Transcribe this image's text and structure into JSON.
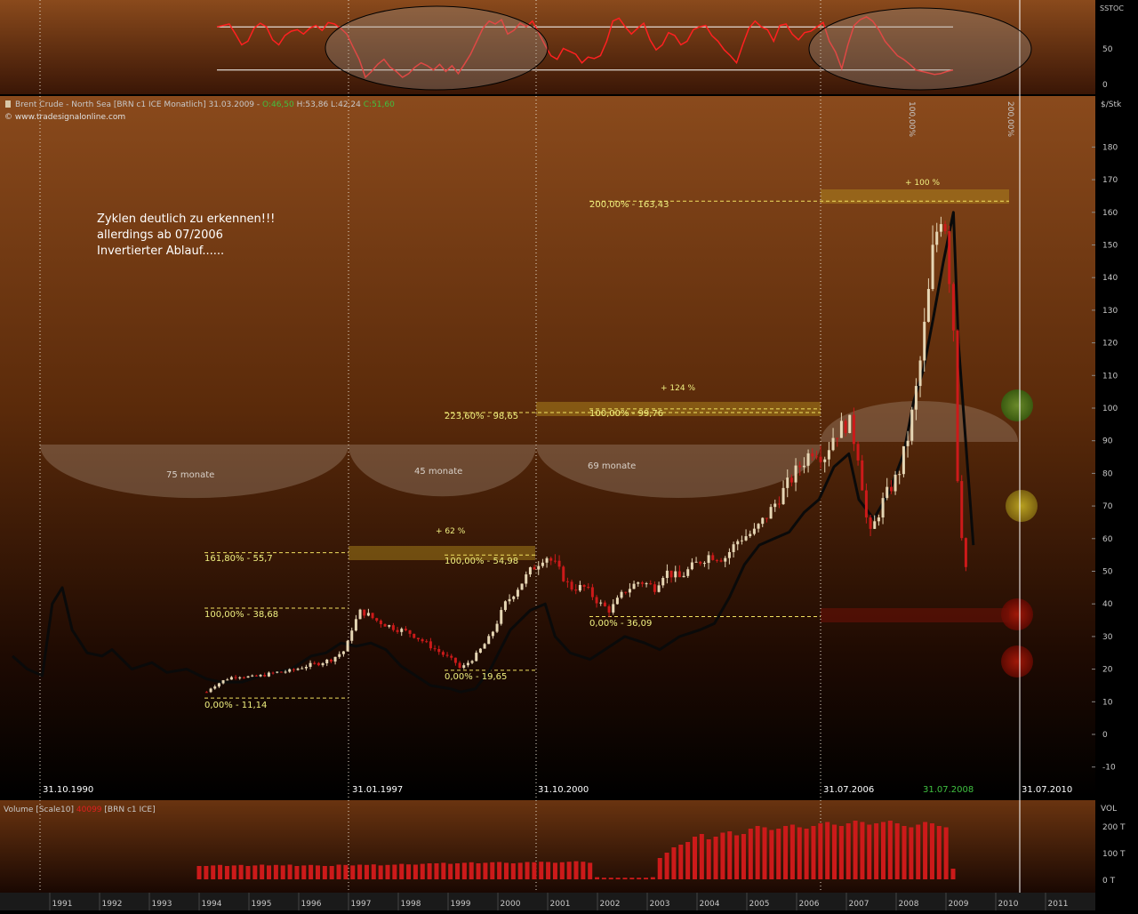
{
  "colors": {
    "background_top": "#8a4a1c",
    "background_bottom": "#000000",
    "price_up": "#e6d6b4",
    "price_down": "#cc1a1a",
    "shadow_line": "#0a0a0a",
    "fib_line": "#f0e060",
    "fib_text": "#f0f080",
    "stoch_line": "#ff2020",
    "volume": "#cc1a1a",
    "axis_text": "#c8c8c8"
  },
  "sstoc": {
    "label": "SSTOC",
    "ticks": [
      "50",
      "0"
    ],
    "levels": [
      80,
      20
    ],
    "values": [
      80,
      82,
      84,
      70,
      55,
      60,
      78,
      85,
      80,
      62,
      55,
      68,
      74,
      76,
      70,
      78,
      82,
      75,
      86,
      84,
      78,
      70,
      52,
      35,
      10,
      18,
      28,
      35,
      24,
      18,
      10,
      15,
      24,
      30,
      26,
      20,
      28,
      18,
      26,
      15,
      28,
      42,
      60,
      78,
      88,
      84,
      90,
      70,
      75,
      85,
      80,
      88,
      72,
      55,
      40,
      35,
      50,
      46,
      42,
      30,
      38,
      36,
      40,
      60,
      88,
      92,
      80,
      70,
      78,
      85,
      62,
      48,
      55,
      72,
      68,
      55,
      60,
      76,
      80,
      82,
      68,
      60,
      48,
      40,
      30,
      55,
      78,
      88,
      80,
      76,
      60,
      82,
      84,
      70,
      62,
      72,
      74,
      80,
      86,
      60,
      45,
      22,
      55,
      82,
      90,
      94,
      88,
      76,
      60,
      50,
      40,
      35,
      28,
      20,
      18,
      16,
      14,
      15,
      18,
      20
    ]
  },
  "main": {
    "title": {
      "instrument": "Brent Crude - North Sea [BRN c1 ICE Monatlich]",
      "date": "31.03.2009 -",
      "open": "O:46,50",
      "hl": "H:53,86 L:42,24",
      "close": "C:51,60"
    },
    "copyright": "© www.tradesignalonline.com",
    "unit": "$/Stk",
    "annotation": [
      "Zyklen deutlich zu erkennen!!!",
      "allerdings ab 07/2006",
      "Invertierter Ablauf......"
    ],
    "y_ticks": [
      "180",
      "170",
      "160",
      "150",
      "140",
      "130",
      "120",
      "110",
      "100",
      "90",
      "80",
      "70",
      "60",
      "50",
      "40",
      "30",
      "20",
      "10",
      "0",
      "-10"
    ],
    "dates": [
      "31.10.1990",
      "31.01.1997",
      "31.10.2000",
      "31.07.2006",
      "31.07.2008",
      "31.07.2010"
    ],
    "arc_labels": [
      "75 monate",
      "45 monate",
      "69 monate"
    ],
    "fib_labels": [
      {
        "text": "0,00% - 11,14",
        "value": 11.14
      },
      {
        "text": "100,00% - 38,68",
        "value": 38.68
      },
      {
        "text": "161,80% - 55,7",
        "value": 55.7
      },
      {
        "text": "0,00% - 19,65",
        "value": 19.65
      },
      {
        "text": "100,00% - 54,98",
        "value": 54.98
      },
      {
        "text": "223,60% - 98,65",
        "value": 98.65
      },
      {
        "text": "0,00% - 36,09",
        "value": 36.09
      },
      {
        "text": "100,00% - 99,76",
        "value": 99.76
      },
      {
        "text": "200,00% - 163,43",
        "value": 163.43
      }
    ],
    "gain_labels": [
      "+ 62 %",
      "+ 124 %",
      "+ 100 %"
    ],
    "vertical_pct": [
      "100,00%",
      "200,00%"
    ]
  },
  "volume": {
    "title": "Volume [Scale10]",
    "title_red": "40099",
    "title_suffix": "[BRN c1 ICE]",
    "label": "VOL",
    "ticks": [
      "200 T",
      "100 T",
      "0 T"
    ]
  },
  "years": [
    "1991",
    "1992",
    "1993",
    "1994",
    "1995",
    "1996",
    "1997",
    "1998",
    "1999",
    "2000",
    "2001",
    "2002",
    "2003",
    "2004",
    "2005",
    "2006",
    "2007",
    "2008",
    "2009",
    "2010",
    "2011"
  ],
  "chart_data": {
    "type": "line",
    "title": "Brent Crude - North Sea [BRN c1 ICE Monatlich]",
    "ylabel": "$/Stk",
    "ylim": [
      -15,
      190
    ],
    "x_range": [
      "1990",
      "2011"
    ],
    "series": [
      {
        "name": "Brent Crude",
        "x": [
          1993.9,
          1994.0,
          1994.3,
          1994.5,
          1994.8,
          1995.0,
          1995.3,
          1995.6,
          1995.9,
          1996.2,
          1996.4,
          1996.7,
          1996.8,
          1997.0,
          1997.3,
          1997.6,
          1997.8,
          1998.0,
          1998.3,
          1998.6,
          1998.9,
          1999.0,
          1999.3,
          1999.6,
          1999.9,
          2000.2,
          2000.4,
          2000.7,
          2000.9,
          2001.2,
          2001.5,
          2001.8,
          2002.0,
          2002.3,
          2002.6,
          2002.9,
          2003.1,
          2003.4,
          2003.7,
          2004.0,
          2004.3,
          2004.6,
          2004.9,
          2005.2,
          2005.5,
          2005.8,
          2006.1,
          2006.3,
          2006.5,
          2006.8,
          2007.0,
          2007.2,
          2007.5,
          2007.8,
          2008.0,
          2008.2,
          2008.4,
          2008.5,
          2008.7,
          2008.9,
          2009.0,
          2009.2
        ],
        "values": [
          13,
          14.5,
          17,
          18,
          17.5,
          18,
          19,
          19.5,
          21,
          22,
          23,
          26,
          32,
          38,
          35,
          33,
          32,
          31,
          28,
          25,
          22,
          20,
          24,
          30,
          40,
          46,
          50,
          55,
          52,
          45,
          45,
          40,
          38,
          44,
          47,
          45,
          50,
          48,
          52,
          55,
          54,
          60,
          62,
          68,
          75,
          82,
          88,
          85,
          92,
          96,
          85,
          60,
          72,
          80,
          92,
          110,
          135,
          150,
          163,
          125,
          70,
          45
        ]
      },
      {
        "name": "Shadow",
        "x": [
          1990.0,
          1990.3,
          1990.6,
          1990.8,
          1991.0,
          1991.2,
          1991.5,
          1991.8,
          1992.0,
          1992.4,
          1992.8,
          1993.1,
          1993.5,
          1993.9,
          1994.2,
          1994.6,
          1995.0,
          1995.3,
          1995.6,
          1996.0,
          1996.3,
          1996.6,
          1996.9,
          1997.2,
          1997.5,
          1997.8,
          1998.0,
          1998.4,
          1998.8,
          1999.0,
          1999.3,
          1999.6,
          2000.0,
          2000.4,
          2000.7,
          2000.9,
          2001.2,
          2001.6,
          2001.9,
          2002.3,
          2002.7,
          2003.0,
          2003.4,
          2003.8,
          2004.1,
          2004.4,
          2004.7,
          2005.0,
          2005.3,
          2005.6,
          2005.9,
          2006.2,
          2006.5,
          2006.8,
          2007.0,
          2007.3,
          2007.6,
          2007.9,
          2008.1,
          2008.3,
          2008.5,
          2008.7,
          2008.9,
          2009.0,
          2009.3
        ],
        "values": [
          24,
          20,
          18,
          40,
          45,
          32,
          25,
          24,
          26,
          20,
          22,
          19,
          20,
          17,
          16,
          16,
          18,
          19,
          20,
          24,
          25,
          28,
          27,
          28,
          26,
          21,
          19,
          15,
          14,
          13,
          14,
          20,
          32,
          38,
          40,
          30,
          25,
          23,
          26,
          30,
          28,
          26,
          30,
          32,
          34,
          42,
          52,
          58,
          60,
          62,
          68,
          72,
          82,
          86,
          72,
          66,
          74,
          86,
          102,
          112,
          128,
          145,
          160,
          120,
          58
        ]
      }
    ],
    "volume_t": {
      "x_range": [
        "1994",
        "2009"
      ],
      "values": [
        50,
        50,
        52,
        54,
        50,
        52,
        54,
        50,
        52,
        55,
        52,
        54,
        52,
        55,
        50,
        52,
        54,
        52,
        50,
        50,
        55,
        54,
        52,
        55,
        54,
        56,
        52,
        54,
        55,
        58,
        56,
        55,
        58,
        60,
        60,
        62,
        58,
        60,
        62,
        64,
        60,
        62,
        64,
        65,
        62,
        60,
        62,
        65,
        64,
        66,
        65,
        62,
        64,
        66,
        68,
        66,
        62,
        8,
        6,
        6,
        6,
        6,
        6,
        6,
        6,
        8,
        80,
        100,
        120,
        130,
        140,
        160,
        170,
        150,
        160,
        175,
        180,
        165,
        170,
        190,
        200,
        195,
        185,
        190,
        200,
        205,
        195,
        190,
        200,
        210,
        215,
        205,
        200,
        210,
        220,
        215,
        205,
        210,
        215,
        220,
        210,
        200,
        195,
        205,
        215,
        210,
        200,
        195,
        40
      ]
    }
  }
}
